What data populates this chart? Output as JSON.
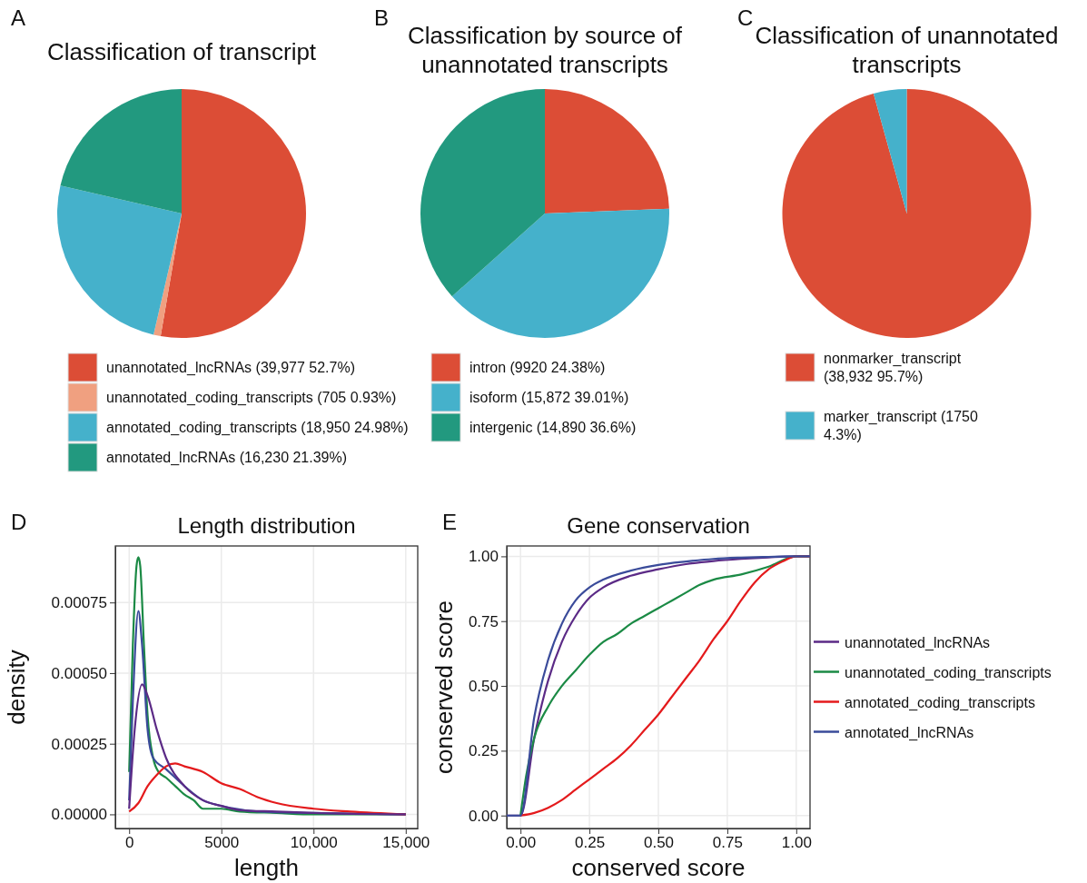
{
  "chart_data": [
    {
      "type": "pie",
      "title": "Classification of transcript",
      "annotations": [
        "A"
      ],
      "legend": "bottom",
      "categories": [
        "unannotated_lncRNAs (39,977 52.7%)",
        "unannotated_coding_transcripts (705 0.93%)",
        "annotated_coding_transcripts (18,950 24.98%)",
        "annotated_lncRNAs (16,230 21.39%)"
      ],
      "values": [
        39977,
        705,
        18950,
        16230
      ],
      "colors": [
        "#dc4d36",
        "#f0a080",
        "#45b1cb",
        "#22997f"
      ]
    },
    {
      "type": "pie",
      "title": "Classification by source of unannotated transcripts",
      "annotations": [
        "B"
      ],
      "legend": "bottom",
      "categories": [
        "intron (9920 24.38%)",
        "isoform (15,872 39.01%)",
        "intergenic (14,890 36.6%)"
      ],
      "values": [
        9920,
        15872,
        14890
      ],
      "colors": [
        "#dc4d36",
        "#45b1cb",
        "#22997f"
      ]
    },
    {
      "type": "pie",
      "title": "Classification of unannotated transcripts",
      "annotations": [
        "C"
      ],
      "legend": "bottom",
      "categories": [
        "nonmarker_transcript (38,932 95.7%)",
        "marker_transcript (1750 4.3%)"
      ],
      "values": [
        38932,
        1750
      ],
      "colors": [
        "#dc4d36",
        "#45b1cb"
      ]
    },
    {
      "type": "line",
      "title": "Length distribution",
      "annotations": [
        "D"
      ],
      "xlabel": "length",
      "ylabel": "density",
      "grid": true,
      "xlim": [
        -750,
        15650
      ],
      "ylim": [
        -5e-05,
        0.00095
      ],
      "xticks": [
        0,
        5000,
        {
          "value": 10000,
          "label": "10,000"
        },
        {
          "value": 15000,
          "label": "15,000"
        }
      ],
      "yticks": [
        {
          "value": 0,
          "label": "0.00000"
        },
        {
          "value": 0.00025,
          "label": "0.00025"
        },
        {
          "value": 0.0005,
          "label": "0.00050"
        },
        {
          "value": 0.00075,
          "label": "0.00075"
        }
      ],
      "series": [
        {
          "color": "#1b8a45",
          "x": [
            0,
            200,
            400,
            500,
            600,
            800,
            1000,
            1300,
            1600,
            2000,
            2500,
            3000,
            3500,
            4000,
            4500,
            5000,
            6000,
            8000,
            10000,
            15000
          ],
          "values": [
            0.00015,
            0.0006,
            0.00088,
            0.00091,
            0.00088,
            0.0006,
            0.00035,
            0.0002,
            0.00015,
            0.00013,
            0.0001,
            7e-05,
            5e-05,
            2e-05,
            2e-05,
            2e-05,
            1e-05,
            5e-06,
            0,
            0
          ]
        },
        {
          "color": "#3a4b9a",
          "x": [
            0,
            200,
            500,
            700,
            1000,
            1300,
            2000,
            3000,
            4000,
            5000,
            7000,
            10000,
            15000
          ],
          "values": [
            5e-05,
            0.0004,
            0.00072,
            0.0006,
            0.0003,
            0.0002,
            0.00016,
            0.0001,
            5e-05,
            3e-05,
            1e-05,
            5e-06,
            0
          ]
        },
        {
          "color": "#e41a1c",
          "x": [
            0,
            500,
            1000,
            1500,
            2000,
            2500,
            3000,
            4000,
            5000,
            6000,
            7000,
            8000,
            10000,
            12000,
            15000
          ],
          "values": [
            1e-05,
            4e-05,
            0.0001,
            0.00014,
            0.00017,
            0.00018,
            0.00017,
            0.00015,
            0.00011,
            9e-05,
            6e-05,
            4e-05,
            2e-05,
            1e-05,
            0
          ]
        },
        {
          "color": "#5b2a86",
          "x": [
            0,
            300,
            700,
            1000,
            1500,
            2000,
            3000,
            4000,
            5000,
            6000,
            8000,
            10000,
            15000
          ],
          "values": [
            2e-05,
            0.0003,
            0.00046,
            0.00042,
            0.0003,
            0.0002,
            0.0001,
            5e-05,
            3e-05,
            1.5e-05,
            1e-05,
            5e-06,
            0
          ]
        }
      ]
    },
    {
      "type": "line",
      "title": "Gene conservation",
      "annotations": [
        "E"
      ],
      "xlabel": "conserved score",
      "ylabel": "conserved score",
      "grid": true,
      "legend": "right",
      "xlim": [
        -0.05,
        1.05
      ],
      "ylim": [
        -0.05,
        1.04
      ],
      "xticks": [
        {
          "value": 0,
          "label": "0.00"
        },
        {
          "value": 0.25,
          "label": "0.25"
        },
        {
          "value": 0.5,
          "label": "0.50"
        },
        {
          "value": 0.75,
          "label": "0.75"
        },
        {
          "value": 1,
          "label": "1.00"
        }
      ],
      "yticks": [
        {
          "value": 0,
          "label": "0.00"
        },
        {
          "value": 0.25,
          "label": "0.25"
        },
        {
          "value": 0.5,
          "label": "0.50"
        },
        {
          "value": 0.75,
          "label": "0.75"
        },
        {
          "value": 1,
          "label": "1.00"
        }
      ],
      "series": [
        {
          "name": "unannotated_lncRNAs",
          "color": "#5b2a86",
          "x": [
            -0.05,
            0,
            0.05,
            0.1,
            0.15,
            0.2,
            0.25,
            0.3,
            0.4,
            0.5,
            0.6,
            0.7,
            0.8,
            0.9,
            1,
            1.05
          ],
          "values": [
            0,
            0,
            0.3,
            0.52,
            0.67,
            0.77,
            0.84,
            0.88,
            0.925,
            0.95,
            0.97,
            0.982,
            0.99,
            0.996,
            1,
            1
          ]
        },
        {
          "name": "unannotated_coding_transcripts",
          "color": "#1b8a45",
          "x": [
            0,
            0.02,
            0.05,
            0.1,
            0.15,
            0.2,
            0.25,
            0.3,
            0.35,
            0.4,
            0.45,
            0.5,
            0.55,
            0.6,
            0.65,
            0.7,
            0.8,
            0.9,
            1,
            1.05
          ],
          "values": [
            0,
            0.15,
            0.3,
            0.42,
            0.5,
            0.56,
            0.62,
            0.67,
            0.7,
            0.74,
            0.77,
            0.8,
            0.83,
            0.86,
            0.89,
            0.91,
            0.93,
            0.96,
            1,
            1
          ]
        },
        {
          "name": "annotated_coding_transcripts",
          "color": "#e41a1c",
          "x": [
            0,
            0.05,
            0.1,
            0.15,
            0.2,
            0.25,
            0.3,
            0.35,
            0.4,
            0.45,
            0.5,
            0.55,
            0.6,
            0.65,
            0.7,
            0.75,
            0.8,
            0.85,
            0.9,
            0.95,
            1,
            1.05
          ],
          "values": [
            0,
            0.01,
            0.03,
            0.06,
            0.1,
            0.14,
            0.18,
            0.22,
            0.27,
            0.33,
            0.39,
            0.46,
            0.53,
            0.6,
            0.68,
            0.75,
            0.83,
            0.9,
            0.95,
            0.98,
            1,
            1
          ]
        },
        {
          "name": "annotated_lncRNAs",
          "color": "#3a4b9a",
          "x": [
            -0.05,
            0,
            0.05,
            0.1,
            0.15,
            0.2,
            0.25,
            0.3,
            0.4,
            0.5,
            0.6,
            0.7,
            0.8,
            0.9,
            1,
            1.05
          ],
          "values": [
            0,
            0,
            0.38,
            0.6,
            0.74,
            0.83,
            0.88,
            0.91,
            0.945,
            0.967,
            0.98,
            0.99,
            0.995,
            0.998,
            1,
            1
          ]
        }
      ]
    }
  ]
}
